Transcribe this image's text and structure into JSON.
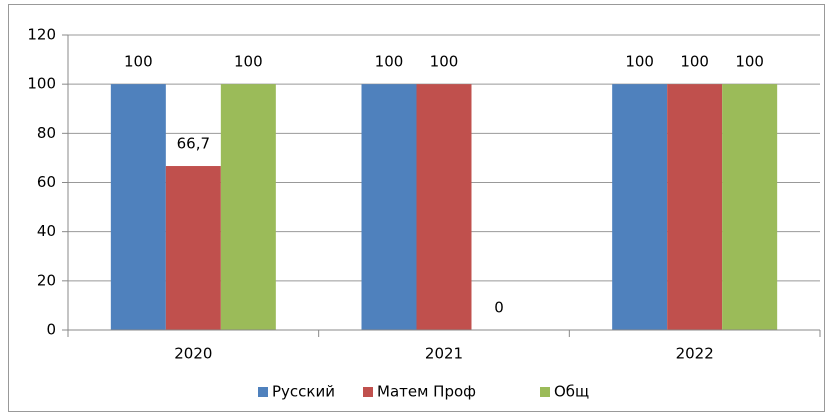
{
  "chart_data": {
    "type": "bar",
    "categories": [
      "2020",
      "2021",
      "2022"
    ],
    "series": [
      {
        "name": "Русский",
        "color": "#4f81bd",
        "values": [
          100,
          100,
          100
        ]
      },
      {
        "name": "Матем Проф",
        "color": "#c0504d",
        "values": [
          66.7,
          100,
          100
        ],
        "value_labels": [
          "66,7",
          "100",
          "100"
        ]
      },
      {
        "name": "Общ",
        "color": "#9bbb59",
        "values": [
          100,
          0,
          100
        ]
      }
    ],
    "ylim": [
      0,
      120
    ],
    "yticks": [
      0,
      20,
      40,
      60,
      80,
      100,
      120
    ],
    "grid": true,
    "legend": "bottom"
  }
}
